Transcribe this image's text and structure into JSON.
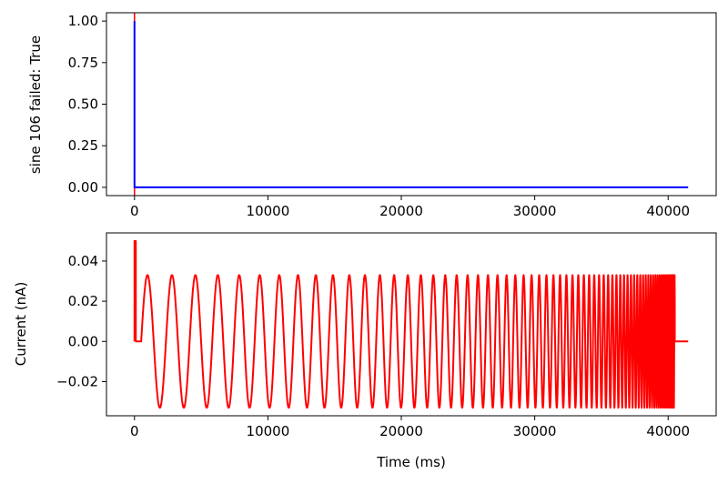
{
  "chart_data": [
    {
      "type": "line",
      "ylabel": "sine 106 failed: True",
      "xlabel": "",
      "xlim": [
        -2100,
        43600
      ],
      "ylim": [
        -0.05,
        1.05
      ],
      "xticks": [
        0,
        10000,
        20000,
        30000,
        40000
      ],
      "yticks": [
        0.0,
        0.25,
        0.5,
        0.75,
        1.0
      ],
      "xtick_labels": [
        "0",
        "10000",
        "20000",
        "30000",
        "40000"
      ],
      "ytick_labels": [
        "0.00",
        "0.25",
        "0.50",
        "0.75",
        "1.00"
      ],
      "grid": false,
      "series": [
        {
          "color": "#ff0000",
          "style": "vertical marker line",
          "x": [
            0,
            0
          ],
          "y": [
            -0.05,
            1.05
          ]
        },
        {
          "color": "#0000ff",
          "x": [
            0,
            0,
            0,
            41500
          ],
          "y": [
            0.0,
            1.0,
            0.0,
            0.0
          ]
        }
      ]
    },
    {
      "type": "line",
      "ylabel": "Current (nA)",
      "xlabel": "Time (ms)",
      "xlim": [
        -2100,
        43600
      ],
      "ylim": [
        -0.037,
        0.054
      ],
      "xticks": [
        0,
        10000,
        20000,
        30000,
        40000
      ],
      "yticks": [
        -0.02,
        0.0,
        0.02,
        0.04
      ],
      "xtick_labels": [
        "0",
        "10000",
        "20000",
        "30000",
        "40000"
      ],
      "ytick_labels": [
        "−0.02",
        "0.00",
        "0.02",
        "0.04"
      ],
      "grid": false,
      "series": [
        {
          "color": "#ff0000",
          "description_pulse": {
            "x_start": 0,
            "x_end": 100,
            "y": 0.05
          },
          "flat_before": {
            "x_start": 100,
            "x_end": 500,
            "y": 0.0
          },
          "chirp": {
            "x_start": 500,
            "x_end": 40500,
            "amplitude": 0.033,
            "period_start_ms": 1900,
            "period_end_ms": 100
          },
          "flat_after": {
            "x_start": 40500,
            "x_end": 41500,
            "y": 0.0
          }
        }
      ]
    }
  ]
}
